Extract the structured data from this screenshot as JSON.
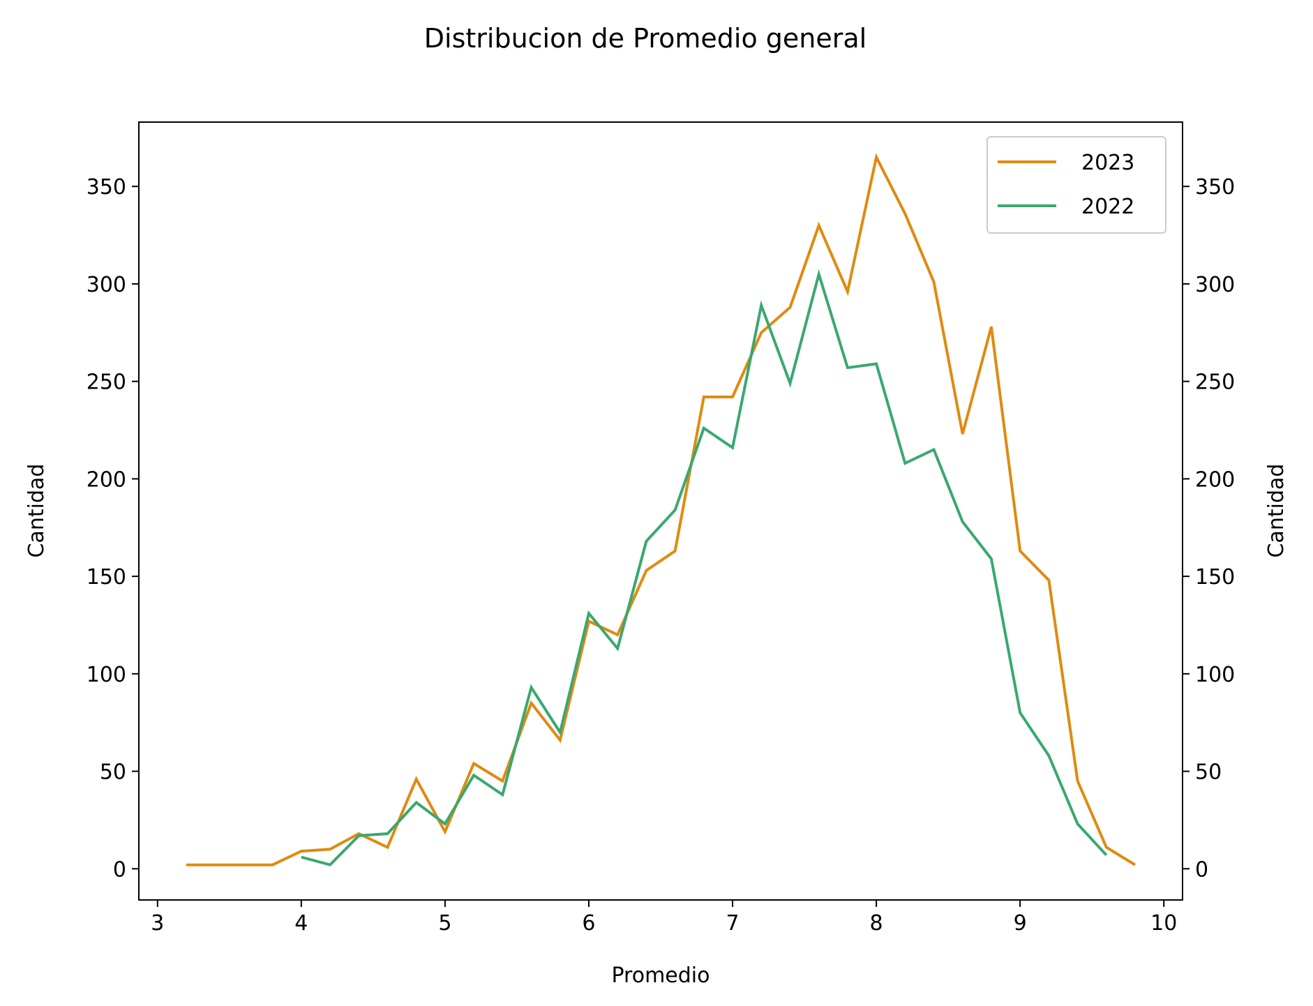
{
  "chart_data": {
    "type": "line",
    "title": "Distribucion de Promedio general",
    "xlabel": "Promedio",
    "ylabel": "Cantidad",
    "ylabel_right": "Cantidad",
    "xlim": [
      2.87,
      10.13
    ],
    "ylim": [
      -16,
      383
    ],
    "xticks": [
      3,
      4,
      5,
      6,
      7,
      8,
      9,
      10
    ],
    "yticks": [
      0,
      50,
      100,
      150,
      200,
      250,
      300,
      350
    ],
    "grid": false,
    "legend_position": "top-right",
    "series": [
      {
        "name": "2023",
        "color": "#e08a10",
        "x": [
          3.2,
          3.4,
          3.6,
          3.8,
          4.0,
          4.2,
          4.4,
          4.6,
          4.8,
          5.0,
          5.2,
          5.4,
          5.6,
          5.8,
          6.0,
          6.2,
          6.4,
          6.6,
          6.8,
          7.0,
          7.2,
          7.4,
          7.6,
          7.8,
          8.0,
          8.2,
          8.4,
          8.6,
          8.8,
          9.0,
          9.2,
          9.4,
          9.6,
          9.8
        ],
        "y": [
          2,
          2,
          2,
          2,
          9,
          10,
          18,
          11,
          46,
          19,
          54,
          45,
          85,
          66,
          127,
          120,
          153,
          163,
          242,
          242,
          275,
          288,
          330,
          296,
          365,
          336,
          301,
          223,
          278,
          163,
          148,
          45,
          11,
          2
        ]
      },
      {
        "name": "2022",
        "color": "#3aa870",
        "x": [
          4.0,
          4.2,
          4.4,
          4.6,
          4.8,
          5.0,
          5.2,
          5.4,
          5.6,
          5.8,
          6.0,
          6.2,
          6.4,
          6.6,
          6.8,
          7.0,
          7.2,
          7.4,
          7.6,
          7.8,
          8.0,
          8.2,
          8.4,
          8.6,
          8.8,
          9.0,
          9.2,
          9.4,
          9.6
        ],
        "y": [
          6,
          2,
          17,
          18,
          34,
          23,
          48,
          38,
          93,
          70,
          131,
          113,
          168,
          184,
          226,
          216,
          289,
          249,
          305,
          257,
          259,
          208,
          215,
          178,
          159,
          80,
          58,
          23,
          7
        ]
      }
    ]
  }
}
